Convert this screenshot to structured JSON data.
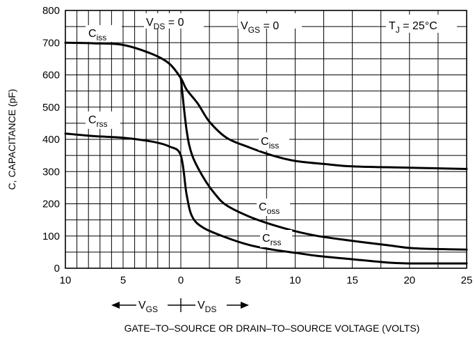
{
  "chart_data": {
    "type": "line",
    "title": "",
    "xlabel": "GATE–TO–SOURCE OR DRAIN–TO–SOURCE VOLTAGE (VOLTS)",
    "ylabel": "C, CAPACITANCE (pF)",
    "x_ticks": [
      "10",
      "5",
      "0",
      "5",
      "10",
      "15",
      "20",
      "25"
    ],
    "y_ticks": [
      "0",
      "100",
      "200",
      "300",
      "400",
      "500",
      "600",
      "700",
      "800"
    ],
    "ylim": [
      0,
      800
    ],
    "grid": true,
    "sections": {
      "vgs_label": "V",
      "vgs_sub": "GS",
      "vds_label": "V",
      "vds_sub": "DS",
      "connector": "+"
    },
    "annotations": {
      "vds_zero": {
        "main": "V",
        "sub": "DS",
        "tail": " = 0"
      },
      "vgs_zero": {
        "main": "V",
        "sub": "GS",
        "tail": " = 0"
      },
      "tj": {
        "main": "T",
        "sub": "J",
        "tail": " =  25°C"
      },
      "ciss_left": {
        "main": "C",
        "sub": "iss"
      },
      "crss_left": {
        "main": "C",
        "sub": "rss"
      },
      "ciss_right": {
        "main": "C",
        "sub": "iss"
      },
      "coss_right": {
        "main": "C",
        "sub": "oss"
      },
      "crss_right": {
        "main": "C",
        "sub": "rss"
      }
    },
    "series": [
      {
        "name": "Ciss",
        "vgs_points": [
          [
            10,
            700
          ],
          [
            7.5,
            698
          ],
          [
            5,
            693
          ],
          [
            2.5,
            665
          ],
          [
            1,
            635
          ],
          [
            0,
            590
          ]
        ],
        "vds_points": [
          [
            0,
            590
          ],
          [
            0.5,
            555
          ],
          [
            1.5,
            510
          ],
          [
            2.5,
            455
          ],
          [
            4,
            405
          ],
          [
            6,
            375
          ],
          [
            8,
            350
          ],
          [
            10,
            333
          ],
          [
            13,
            322
          ],
          [
            15,
            316
          ],
          [
            20,
            312
          ],
          [
            25,
            308
          ]
        ]
      },
      {
        "name": "Coss",
        "vgs_points": [],
        "vds_points": [
          [
            0,
            590
          ],
          [
            0.5,
            430
          ],
          [
            1,
            350
          ],
          [
            2,
            280
          ],
          [
            3,
            230
          ],
          [
            4,
            195
          ],
          [
            6,
            160
          ],
          [
            8,
            135
          ],
          [
            10,
            115
          ],
          [
            12,
            100
          ],
          [
            15,
            85
          ],
          [
            18,
            72
          ],
          [
            20,
            63
          ],
          [
            22,
            60
          ],
          [
            25,
            58
          ]
        ]
      },
      {
        "name": "Crss",
        "vgs_points": [
          [
            10,
            418
          ],
          [
            7.5,
            410
          ],
          [
            5,
            405
          ],
          [
            2.5,
            393
          ],
          [
            1,
            378
          ],
          [
            0,
            350
          ]
        ],
        "vds_points": [
          [
            0,
            350
          ],
          [
            0.5,
            230
          ],
          [
            1,
            160
          ],
          [
            2,
            125
          ],
          [
            4,
            95
          ],
          [
            6,
            72
          ],
          [
            8,
            58
          ],
          [
            10,
            48
          ],
          [
            12,
            38
          ],
          [
            15,
            28
          ],
          [
            18,
            18
          ],
          [
            20,
            15
          ],
          [
            22,
            15
          ],
          [
            25,
            15
          ]
        ]
      }
    ]
  }
}
